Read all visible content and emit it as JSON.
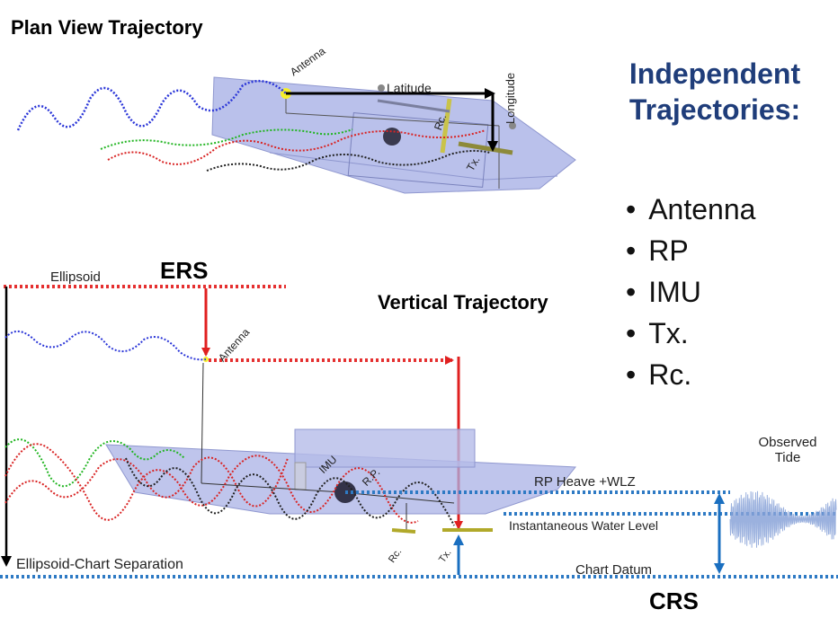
{
  "plan_view": {
    "title": "Plan View Trajectory",
    "labels": {
      "antenna": "Antenna",
      "latitude": "Latitude",
      "longitude": "Longitude",
      "rc": "Rc.",
      "tx": "Tx."
    }
  },
  "side_panel": {
    "heading_line1": "Independent",
    "heading_line2": "Trajectories:",
    "items": [
      "Antenna",
      "RP",
      "IMU",
      "Tx.",
      "Rc."
    ]
  },
  "vertical_view": {
    "title": "Vertical Trajectory",
    "ers": "ERS",
    "crs": "CRS",
    "ellipsoid": "Ellipsoid",
    "antenna": "Antenna",
    "imu": "IMU",
    "rp": "R.P.",
    "rc": "Rc.",
    "tx": "Tx.",
    "rp_heave": "RP Heave +WLZ",
    "instantaneous_water_level": "Instantaneous Water Level",
    "chart_datum": "Chart Datum",
    "ellipsoid_chart_separation": "Ellipsoid-Chart Separation",
    "observed_tide_line1": "Observed",
    "observed_tide_line2": "Tide"
  },
  "colors": {
    "hull": "#a9b1e6",
    "ellipsoid_line": "#e53030",
    "chart_datum_line": "#2e7ac4",
    "trajectory_blue": "#2b36d8",
    "trajectory_green": "#22b522",
    "trajectory_red": "#d92424",
    "trajectory_black": "#222222",
    "heading": "#1f3d7a"
  }
}
